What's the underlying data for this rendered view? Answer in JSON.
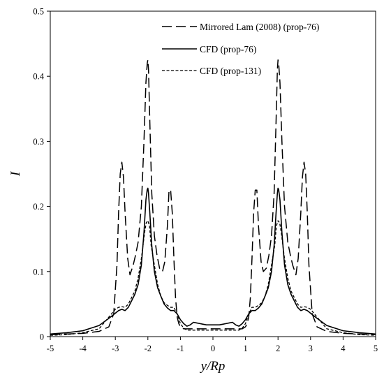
{
  "chart_data": {
    "type": "line",
    "xlabel": "y/Rp",
    "ylabel": "I",
    "xlim": [
      -5,
      5
    ],
    "ylim": [
      0,
      0.5
    ],
    "x_ticks": [
      -5,
      -4,
      -3,
      -2,
      -1,
      0,
      1,
      2,
      3,
      4,
      5
    ],
    "y_ticks": [
      0,
      0.1,
      0.2,
      0.3,
      0.4,
      0.5
    ],
    "x_tick_labels": [
      "-5",
      "-4",
      "-3",
      "-2",
      "-1",
      "0",
      "1",
      "2",
      "3",
      "4",
      "5"
    ],
    "y_tick_labels": [
      "0",
      "0.1",
      "0.2",
      "0.3",
      "0.4",
      "0.5"
    ],
    "grid": false,
    "legend_position": "top-right",
    "series": [
      {
        "name": "Mirrored Lam (2008) (prop-76)",
        "style": "long-dash",
        "color": "#000000",
        "x": [
          -5,
          -4,
          -3.5,
          -3.2,
          -3.05,
          -2.95,
          -2.9,
          -2.85,
          -2.8,
          -2.75,
          -2.7,
          -2.62,
          -2.55,
          -2.45,
          -2.38,
          -2.3,
          -2.2,
          -2.12,
          -2.06,
          -2.02,
          -2,
          -1.98,
          -1.94,
          -1.88,
          -1.8,
          -1.72,
          -1.64,
          -1.55,
          -1.48,
          -1.4,
          -1.35,
          -1.3,
          -1.25,
          -1.2,
          -1.15,
          -1.1,
          -1.05,
          -1.0,
          -0.9,
          -0.8,
          -0.6,
          -0.4,
          -0.2,
          0,
          0.2,
          0.4,
          0.6,
          0.8,
          0.9,
          1.0,
          1.05,
          1.1,
          1.15,
          1.2,
          1.25,
          1.3,
          1.35,
          1.4,
          1.48,
          1.55,
          1.64,
          1.72,
          1.8,
          1.88,
          1.94,
          1.98,
          2,
          2.02,
          2.06,
          2.12,
          2.2,
          2.3,
          2.38,
          2.45,
          2.55,
          2.62,
          2.7,
          2.75,
          2.8,
          2.85,
          2.9,
          2.95,
          3.05,
          3.2,
          3.5,
          4,
          5
        ],
        "y": [
          0.003,
          0.005,
          0.008,
          0.015,
          0.035,
          0.11,
          0.19,
          0.25,
          0.268,
          0.245,
          0.19,
          0.12,
          0.095,
          0.11,
          0.125,
          0.145,
          0.2,
          0.3,
          0.39,
          0.42,
          0.425,
          0.41,
          0.33,
          0.22,
          0.155,
          0.125,
          0.105,
          0.1,
          0.115,
          0.17,
          0.225,
          0.225,
          0.19,
          0.12,
          0.06,
          0.03,
          0.02,
          0.015,
          0.012,
          0.012,
          0.012,
          0.012,
          0.012,
          0.012,
          0.012,
          0.012,
          0.012,
          0.012,
          0.012,
          0.015,
          0.02,
          0.03,
          0.06,
          0.12,
          0.19,
          0.225,
          0.225,
          0.17,
          0.115,
          0.1,
          0.105,
          0.125,
          0.155,
          0.22,
          0.33,
          0.41,
          0.425,
          0.42,
          0.39,
          0.3,
          0.2,
          0.145,
          0.125,
          0.11,
          0.095,
          0.12,
          0.19,
          0.245,
          0.268,
          0.25,
          0.19,
          0.11,
          0.035,
          0.015,
          0.008,
          0.005,
          0.003
        ]
      },
      {
        "name": "CFD (prop-76)",
        "style": "solid",
        "color": "#000000",
        "x": [
          -5,
          -4.5,
          -4,
          -3.5,
          -3.2,
          -3.0,
          -2.9,
          -2.8,
          -2.7,
          -2.6,
          -2.5,
          -2.4,
          -2.3,
          -2.2,
          -2.12,
          -2.06,
          -2.02,
          -2,
          -1.98,
          -1.94,
          -1.88,
          -1.8,
          -1.7,
          -1.6,
          -1.5,
          -1.4,
          -1.3,
          -1.2,
          -1.1,
          -1.0,
          -0.9,
          -0.8,
          -0.7,
          -0.6,
          -0.5,
          -0.4,
          -0.3,
          -0.2,
          -0.1,
          0,
          0.1,
          0.2,
          0.3,
          0.4,
          0.5,
          0.6,
          0.7,
          0.8,
          0.9,
          1.0,
          1.1,
          1.2,
          1.3,
          1.4,
          1.5,
          1.6,
          1.7,
          1.8,
          1.88,
          1.94,
          1.98,
          2,
          2.02,
          2.06,
          2.12,
          2.2,
          2.3,
          2.4,
          2.5,
          2.6,
          2.7,
          2.8,
          2.9,
          3.0,
          3.2,
          3.5,
          4,
          4.5,
          5
        ],
        "y": [
          0.004,
          0.006,
          0.009,
          0.017,
          0.028,
          0.036,
          0.04,
          0.042,
          0.04,
          0.045,
          0.055,
          0.065,
          0.08,
          0.11,
          0.16,
          0.21,
          0.226,
          0.228,
          0.22,
          0.19,
          0.14,
          0.1,
          0.075,
          0.062,
          0.05,
          0.044,
          0.04,
          0.04,
          0.035,
          0.026,
          0.02,
          0.016,
          0.018,
          0.022,
          0.021,
          0.02,
          0.019,
          0.018,
          0.018,
          0.018,
          0.018,
          0.018,
          0.019,
          0.02,
          0.021,
          0.022,
          0.018,
          0.016,
          0.02,
          0.026,
          0.035,
          0.04,
          0.04,
          0.044,
          0.05,
          0.062,
          0.075,
          0.1,
          0.14,
          0.19,
          0.22,
          0.228,
          0.226,
          0.21,
          0.16,
          0.11,
          0.08,
          0.065,
          0.055,
          0.045,
          0.04,
          0.042,
          0.04,
          0.036,
          0.028,
          0.017,
          0.009,
          0.006,
          0.004
        ]
      },
      {
        "name": "CFD (prop-131)",
        "style": "short-dash",
        "color": "#000000",
        "x": [
          -5,
          -4.5,
          -4,
          -3.5,
          -3.2,
          -3.0,
          -2.9,
          -2.8,
          -2.7,
          -2.6,
          -2.5,
          -2.4,
          -2.3,
          -2.2,
          -2.1,
          -2.05,
          -2,
          -1.95,
          -1.9,
          -1.8,
          -1.7,
          -1.6,
          -1.5,
          -1.4,
          -1.3,
          -1.2,
          -1.1,
          -1.0,
          -0.9,
          -0.8,
          -0.6,
          -0.4,
          -0.2,
          0,
          0.2,
          0.4,
          0.6,
          0.8,
          0.9,
          1.0,
          1.1,
          1.2,
          1.3,
          1.4,
          1.5,
          1.6,
          1.7,
          1.8,
          1.9,
          1.95,
          2,
          2.05,
          2.1,
          2.2,
          2.3,
          2.4,
          2.5,
          2.6,
          2.7,
          2.8,
          2.9,
          3.0,
          3.2,
          3.5,
          4,
          4.5,
          5
        ],
        "y": [
          0.002,
          0.003,
          0.006,
          0.012,
          0.03,
          0.042,
          0.045,
          0.046,
          0.045,
          0.05,
          0.06,
          0.07,
          0.09,
          0.12,
          0.16,
          0.175,
          0.178,
          0.17,
          0.14,
          0.11,
          0.08,
          0.062,
          0.052,
          0.048,
          0.045,
          0.045,
          0.035,
          0.02,
          0.013,
          0.01,
          0.01,
          0.01,
          0.01,
          0.01,
          0.01,
          0.01,
          0.01,
          0.01,
          0.013,
          0.02,
          0.035,
          0.045,
          0.045,
          0.048,
          0.052,
          0.062,
          0.08,
          0.11,
          0.14,
          0.17,
          0.178,
          0.175,
          0.16,
          0.12,
          0.09,
          0.07,
          0.06,
          0.05,
          0.045,
          0.046,
          0.045,
          0.042,
          0.03,
          0.012,
          0.006,
          0.003,
          0.002
        ]
      }
    ]
  }
}
